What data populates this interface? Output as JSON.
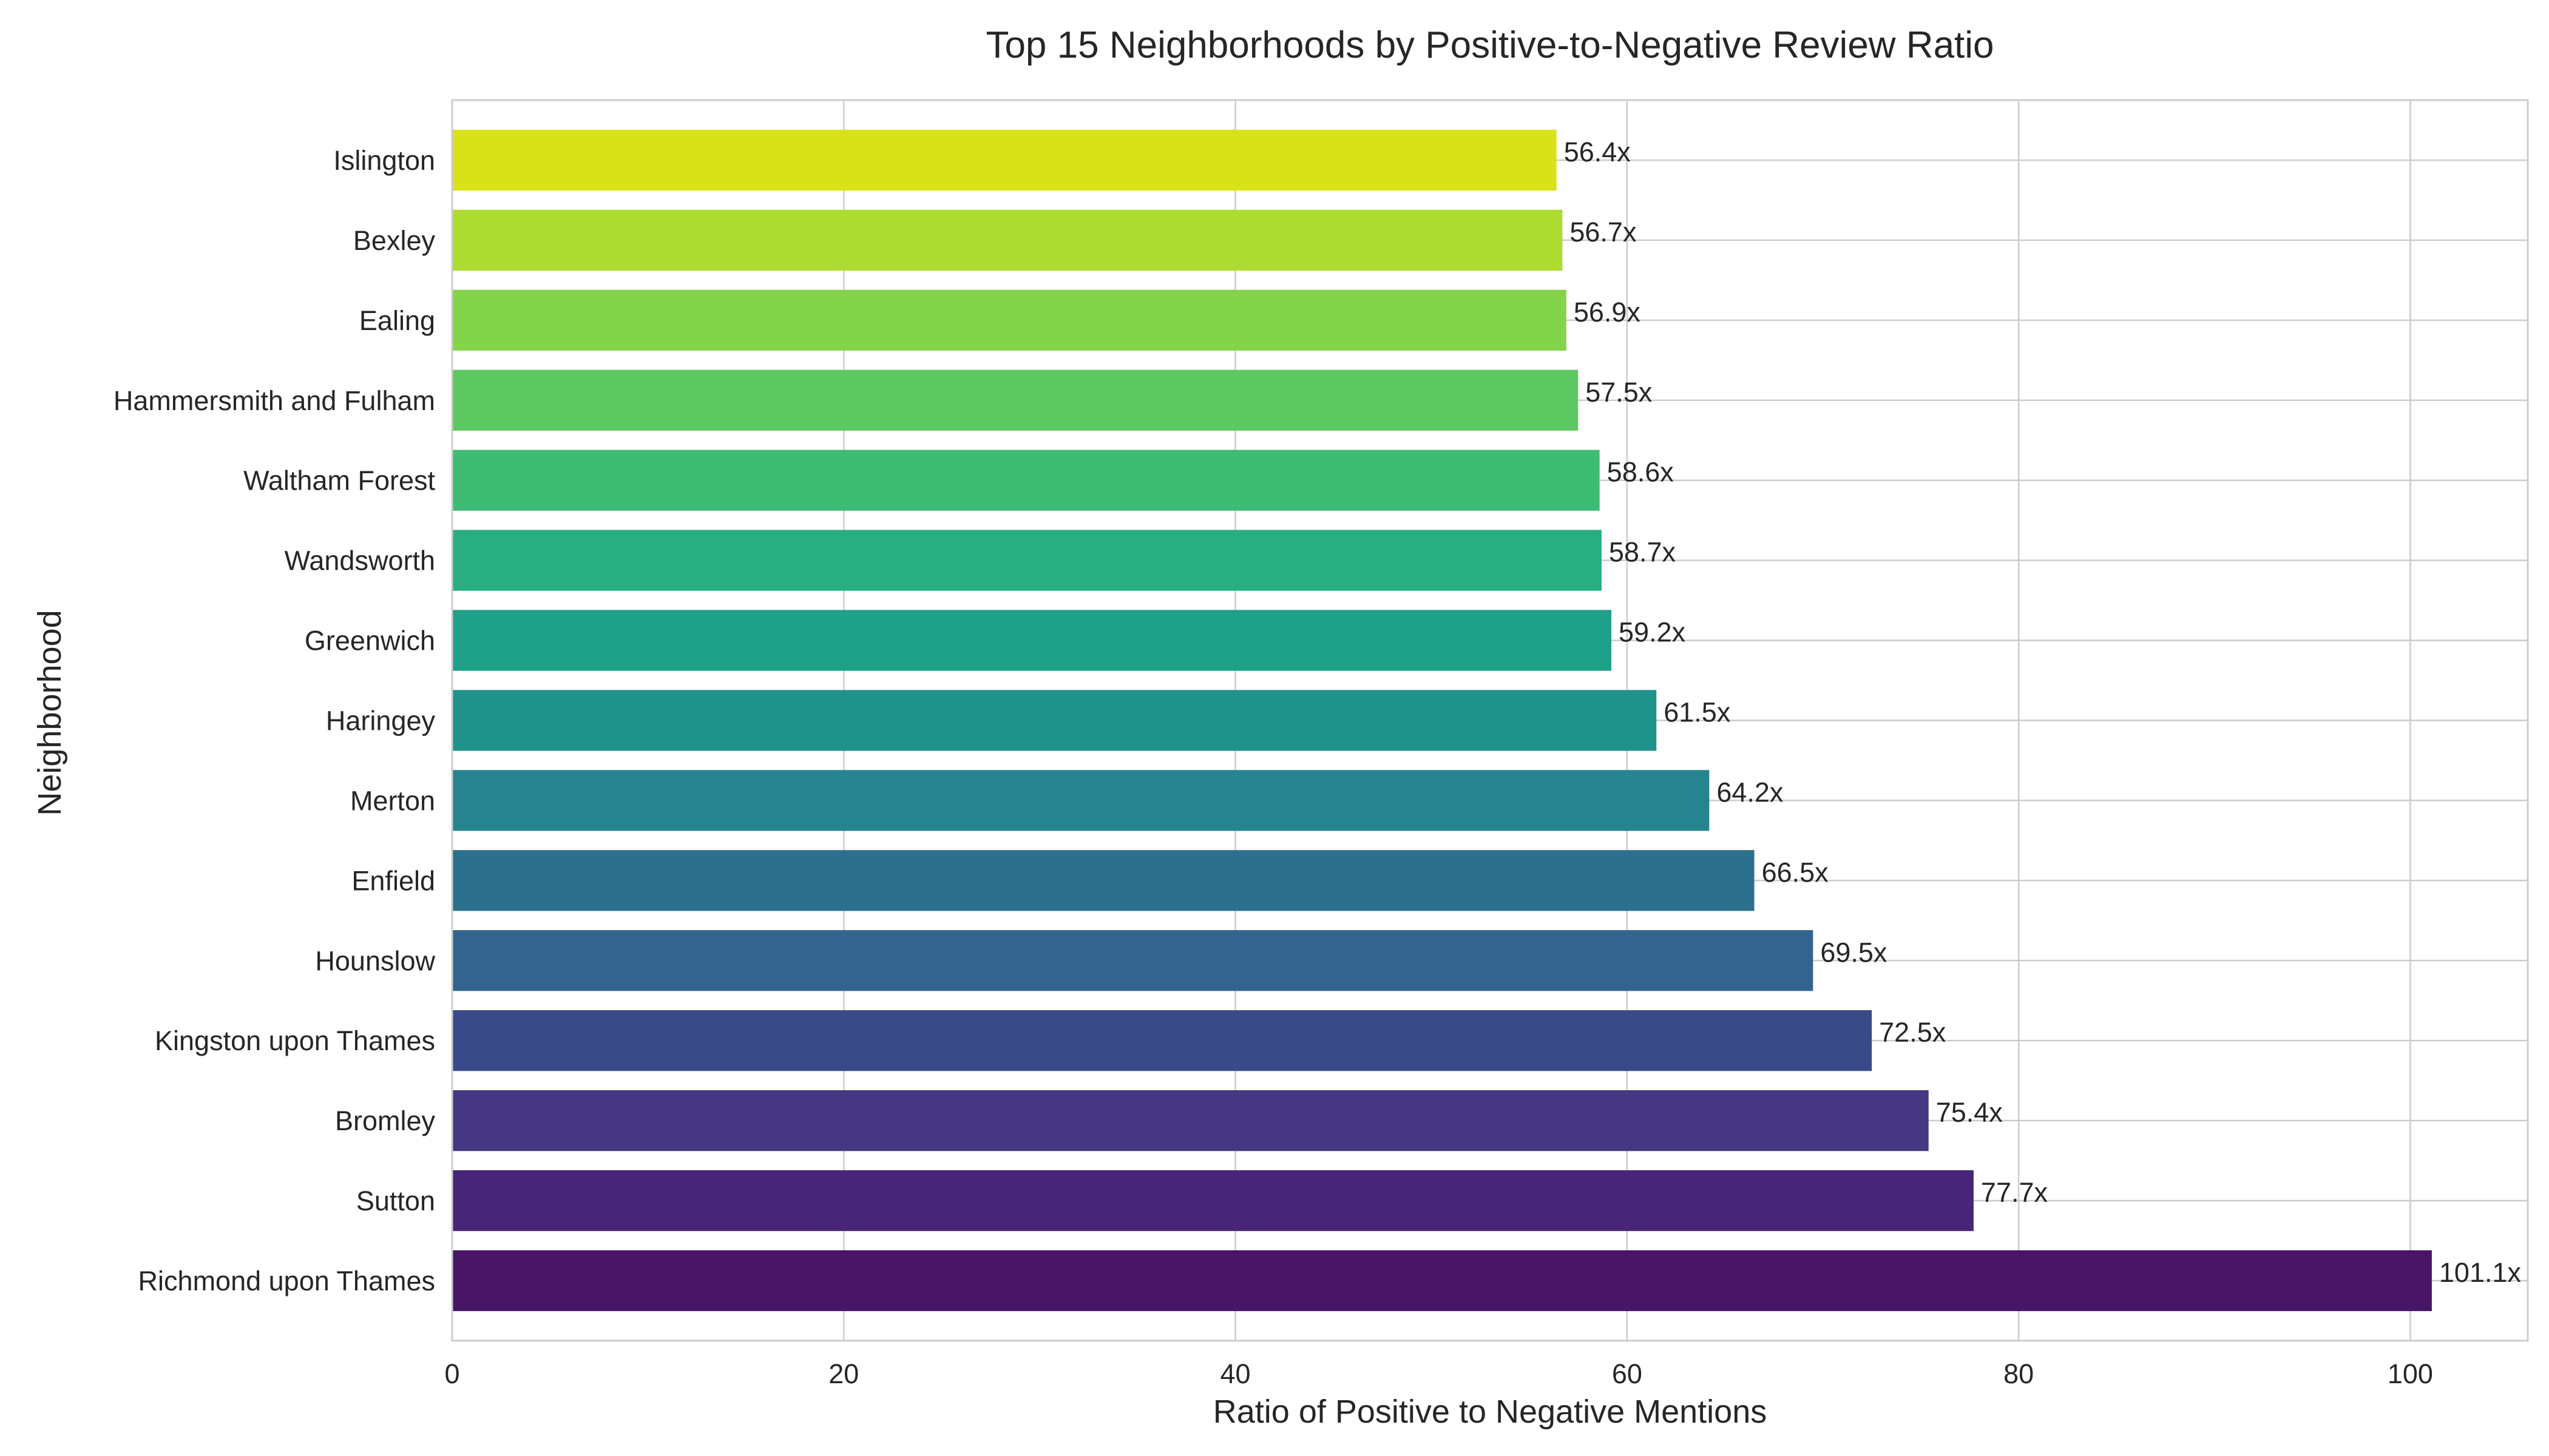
{
  "chart_data": {
    "type": "bar",
    "orientation": "horizontal",
    "title": "Top 15 Neighborhoods by Positive-to-Negative Review Ratio",
    "xlabel": "Ratio of Positive to Negative Mentions",
    "ylabel": "Neighborhood",
    "xlim": [
      0,
      106
    ],
    "xticks": [
      0,
      20,
      40,
      60,
      80,
      100
    ],
    "grid": true,
    "categories": [
      "Richmond upon Thames",
      "Sutton",
      "Bromley",
      "Kingston upon Thames",
      "Hounslow",
      "Enfield",
      "Merton",
      "Haringey",
      "Greenwich",
      "Wandsworth",
      "Waltham Forest",
      "Hammersmith and Fulham",
      "Ealing",
      "Bexley",
      "Islington"
    ],
    "values": [
      101.1,
      77.7,
      75.4,
      72.5,
      69.5,
      66.5,
      64.2,
      61.5,
      59.2,
      58.7,
      58.6,
      57.5,
      56.9,
      56.7,
      56.4
    ],
    "data_labels": [
      "101.1x",
      "77.7x",
      "75.4x",
      "72.5x",
      "69.5x",
      "66.5x",
      "64.2x",
      "61.5x",
      "59.2x",
      "58.7x",
      "58.6x",
      "57.5x",
      "56.9x",
      "56.7x",
      "56.4x"
    ],
    "colors": [
      "#481567",
      "#482677",
      "#453781",
      "#3a4a89",
      "#32648e",
      "#2d708e",
      "#25848e",
      "#20928c",
      "#1fa088",
      "#28ae80",
      "#3fbc73",
      "#5ec962",
      "#84d44b",
      "#addc30",
      "#d8e219"
    ]
  }
}
